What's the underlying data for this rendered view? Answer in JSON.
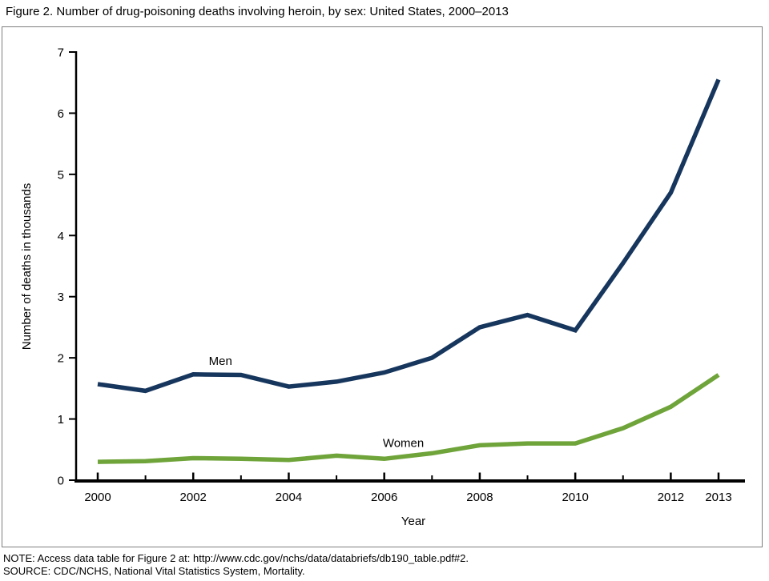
{
  "page": {
    "title": "Figure 2. Number of drug-poisoning deaths involving heroin, by sex: United States, 2000–2013",
    "notes": [
      "NOTE: Access data table for Figure 2 at: http://www.cdc.gov/nchs/data/databriefs/db190_table.pdf#2.",
      "SOURCE: CDC/NCHS, National Vital Statistics System, Mortality."
    ]
  },
  "chart_data": {
    "type": "line",
    "title": "Figure 2. Number of drug-poisoning deaths involving heroin, by sex: United States, 2000–2013",
    "xlabel": "Year",
    "ylabel": "Number of deaths in thousands",
    "x": [
      2000,
      2001,
      2002,
      2003,
      2004,
      2005,
      2006,
      2007,
      2008,
      2009,
      2010,
      2011,
      2012,
      2013
    ],
    "x_tick_labels": [
      2000,
      2002,
      2004,
      2006,
      2008,
      2010,
      2012,
      2013
    ],
    "y_ticks": [
      0,
      1,
      2,
      3,
      4,
      5,
      6,
      7
    ],
    "ylim": [
      0,
      7
    ],
    "grid": false,
    "legend_position": "inline-labels",
    "axis_color": "#000000",
    "series": [
      {
        "name": "Men",
        "color": "#17365d",
        "values": [
          1.57,
          1.46,
          1.73,
          1.72,
          1.53,
          1.61,
          1.76,
          2.0,
          2.5,
          2.7,
          2.45,
          3.55,
          4.7,
          6.55
        ],
        "label_at": {
          "x": 2002.57,
          "y": 1.885
        }
      },
      {
        "name": "Women",
        "color": "#6fa43a",
        "values": [
          0.3,
          0.31,
          0.36,
          0.35,
          0.33,
          0.4,
          0.35,
          0.44,
          0.57,
          0.6,
          0.6,
          0.85,
          1.2,
          1.72
        ],
        "label_at": {
          "x": 2006.4,
          "y": 0.54
        }
      }
    ]
  }
}
